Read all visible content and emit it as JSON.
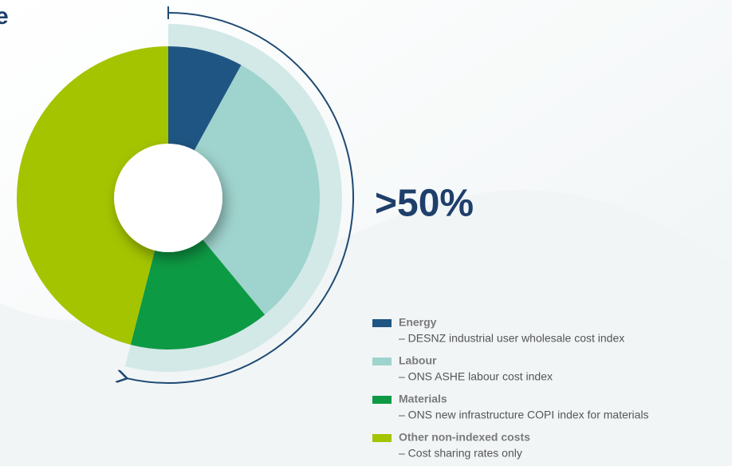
{
  "chart_data": {
    "type": "pie",
    "title": "e",
    "annotation": ">50%",
    "categories": [
      "Energy",
      "Labour",
      "Materials",
      "Other non-indexed costs"
    ],
    "descriptions": [
      "– DESNZ industrial user wholesale cost index",
      "– ONS ASHE labour cost index",
      "– ONS new infrastructure COPI index for materials",
      "– Cost sharing rates only"
    ],
    "values": [
      8,
      31,
      15,
      46
    ],
    "colors": [
      "#1f5582",
      "#9fd3cd",
      "#0d9a44",
      "#a4c400"
    ]
  }
}
